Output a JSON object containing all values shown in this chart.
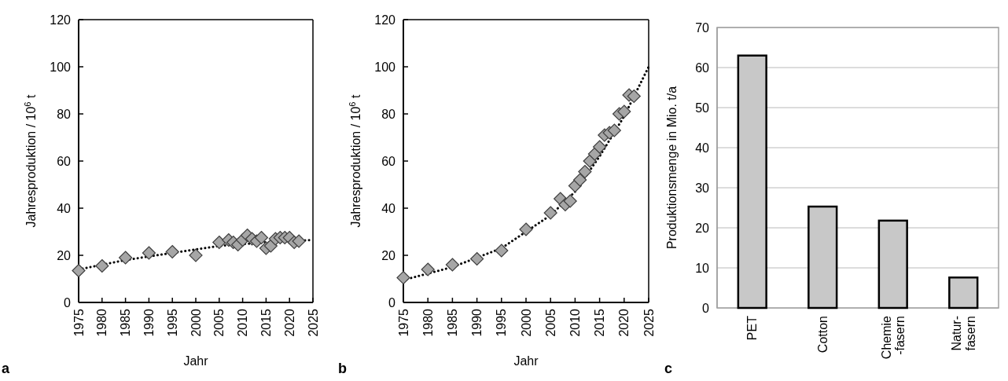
{
  "chart_data": [
    {
      "type": "scatter",
      "xlabel": "Jahr",
      "ylabel": "Jahresproduktion / 10$^{6}$ t",
      "annotations": [
        "a"
      ],
      "xlim": [
        1975,
        2025
      ],
      "xticks": [
        1975,
        1980,
        1985,
        1990,
        1995,
        2000,
        2005,
        2010,
        2015,
        2020,
        2025
      ],
      "ylim": [
        0,
        120
      ],
      "yticks": [
        0,
        20,
        40,
        60,
        80,
        100,
        120
      ],
      "grid": false,
      "marker": "diamond",
      "series": [
        {
          "type": "line",
          "color": "#000000",
          "line_style": "dotted",
          "marker": "none",
          "x": [
            1975,
            1985,
            1995,
            2005,
            2015,
            2025
          ],
          "values": [
            14,
            18,
            21,
            24,
            25.5,
            26.5
          ]
        },
        {
          "type": "scatter",
          "color": "#a6a6a6",
          "x": [
            1975,
            1980,
            1985,
            1990,
            1995,
            2000,
            2005,
            2007,
            2008,
            2009,
            2010,
            2011,
            2012,
            2013,
            2014,
            2015,
            2016,
            2017,
            2018,
            2019,
            2020,
            2021,
            2022
          ],
          "values": [
            13.5,
            15.5,
            19,
            21,
            21.5,
            20,
            25.5,
            26.5,
            25.5,
            24.5,
            26.5,
            28.5,
            27,
            26,
            27.5,
            23,
            24,
            27,
            27.5,
            27.5,
            27.5,
            25.5,
            26
          ]
        }
      ]
    },
    {
      "type": "scatter",
      "xlabel": "Jahr",
      "ylabel": "Jahresproduktion / 10$^{6}$ t",
      "annotations": [
        "b"
      ],
      "xlim": [
        1975,
        2025
      ],
      "xticks": [
        1975,
        1980,
        1985,
        1990,
        1995,
        2000,
        2005,
        2010,
        2015,
        2020,
        2025
      ],
      "ylim": [
        0,
        120
      ],
      "yticks": [
        0,
        20,
        40,
        60,
        80,
        100,
        120
      ],
      "grid": false,
      "marker": "diamond",
      "series": [
        {
          "type": "line",
          "color": "#000000",
          "line_style": "dotted",
          "marker": "none",
          "x": [
            1975,
            1985,
            1995,
            2005,
            2010,
            2015,
            2020,
            2025
          ],
          "values": [
            9.5,
            15,
            23,
            37,
            47,
            62,
            79,
            100
          ]
        },
        {
          "type": "scatter",
          "color": "#a6a6a6",
          "x": [
            1975,
            1980,
            1985,
            1990,
            1995,
            2000,
            2005,
            2007,
            2008,
            2009,
            2010,
            2011,
            2012,
            2013,
            2014,
            2015,
            2016,
            2017,
            2018,
            2019,
            2020,
            2021,
            2022
          ],
          "values": [
            10.5,
            14,
            16,
            18.5,
            22,
            31,
            38,
            44,
            41.5,
            43,
            49.5,
            52,
            55.5,
            60,
            63,
            66,
            71,
            72,
            73,
            80,
            81,
            88,
            87.5
          ]
        }
      ]
    },
    {
      "type": "bar",
      "ylabel": "Produktionsmenge in Mio. t/a",
      "annotations": [
        "c"
      ],
      "categories": [
        "PET",
        "Cotton",
        "Chemie\n-fasern",
        "Natur-\nfasern"
      ],
      "values": [
        63,
        25.3,
        21.8,
        7.6
      ],
      "color": "#c8c8c8",
      "ylim": [
        0,
        70
      ],
      "yticks": [
        0,
        10,
        20,
        30,
        40,
        50,
        60,
        70
      ],
      "grid": "y"
    }
  ]
}
